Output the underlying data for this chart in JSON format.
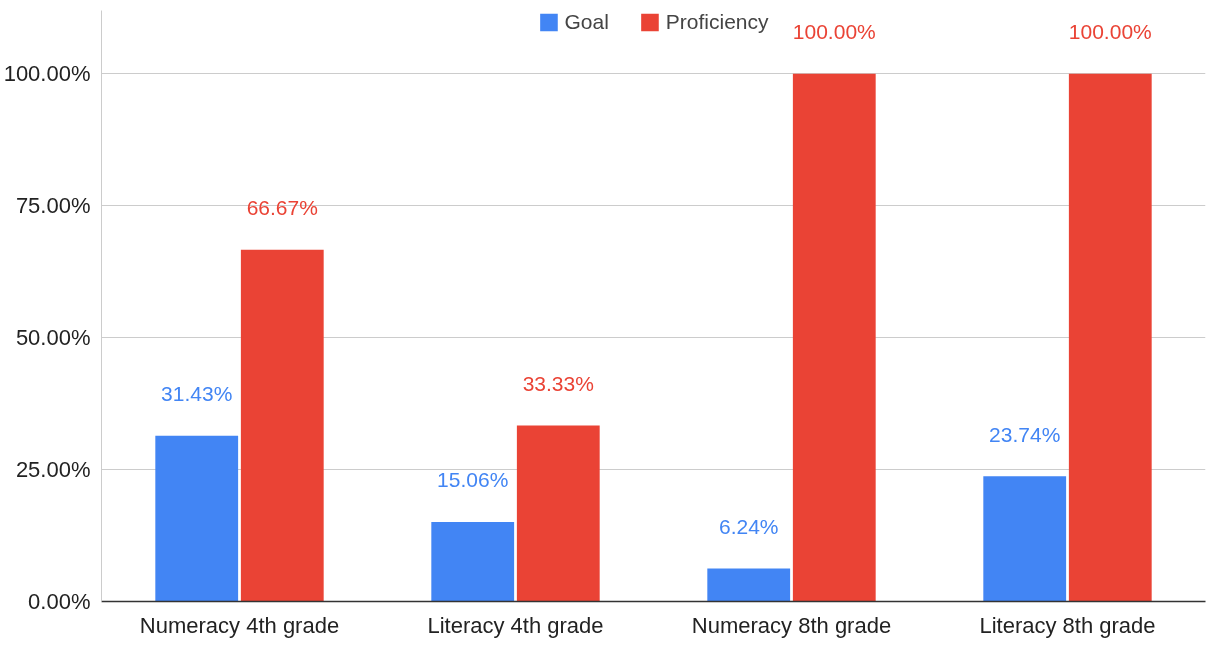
{
  "chart_data": {
    "type": "bar",
    "categories": [
      "Numeracy 4th grade",
      "Literacy 4th grade",
      "Numeracy 8th grade",
      "Literacy 8th grade"
    ],
    "series": [
      {
        "name": "Goal",
        "color": "#4285f4",
        "values": [
          31.43,
          15.06,
          6.24,
          23.74
        ],
        "value_labels": [
          "31.43%",
          "15.06%",
          "6.24%",
          "23.74%"
        ]
      },
      {
        "name": "Proficiency",
        "color": "#ea4335",
        "values": [
          66.67,
          33.33,
          100,
          100
        ],
        "value_labels": [
          "66.67%",
          "33.33%",
          "100.00%",
          "100.00%"
        ]
      }
    ],
    "ylim": [
      0,
      112
    ],
    "yticks": [
      {
        "value": 0,
        "label": "0.00%"
      },
      {
        "value": 25,
        "label": "25.00%"
      },
      {
        "value": 50,
        "label": "50.00%"
      },
      {
        "value": 75,
        "label": "75.00%"
      },
      {
        "value": 100,
        "label": "100.00%"
      }
    ],
    "grid": "y",
    "legend": "top"
  }
}
